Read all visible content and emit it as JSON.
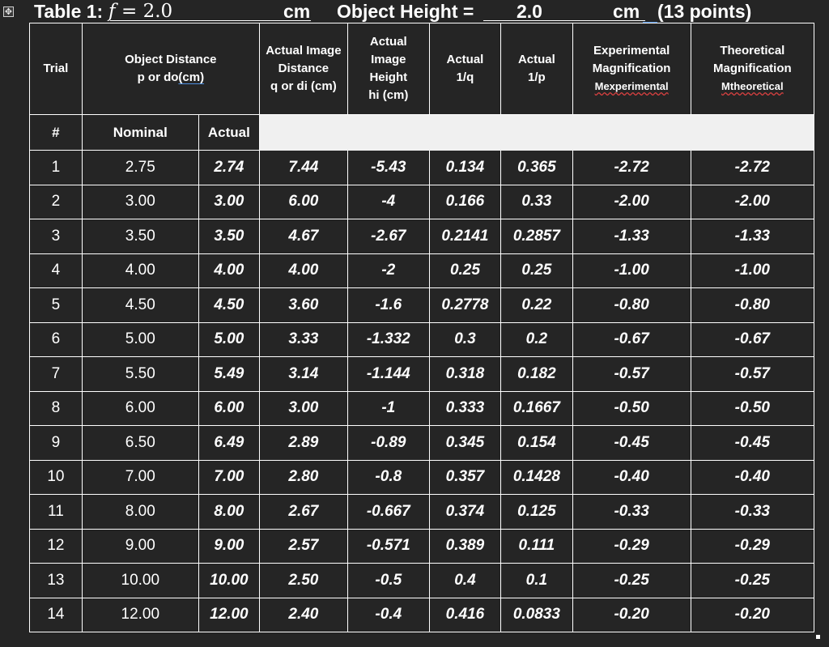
{
  "title": {
    "table_label": "Table 1:",
    "f_symbol": "f",
    "f_eq": "= 2.0",
    "f_unit": "cm",
    "height_label": "Object Height =",
    "height_value": "2.0",
    "height_unit": "cm",
    "points": "(13 points)"
  },
  "header": {
    "trial": "Trial",
    "object_distance_line1": "Object Distance",
    "object_distance_line2": "p  or  do",
    "object_distance_unit": "(cm)",
    "image_distance_line1": "Actual Image",
    "image_distance_line2": "Distance",
    "image_distance_line3": "q or di (cm)",
    "image_height_line1": "Actual",
    "image_height_line2": "Image",
    "image_height_line3": "Height",
    "image_height_line4": "hi (cm)",
    "inv_q_line1": "Actual",
    "inv_q_line2": "1/q",
    "inv_p_line1": "Actual",
    "inv_p_line2": "1/p",
    "exp_mag_line1": "Experimental",
    "exp_mag_line2": "Magnification",
    "exp_mag_line3": "Mexperimental",
    "theo_mag_line1": "Theoretical",
    "theo_mag_line2": "Magnification",
    "theo_mag_line3": "Mtheoretical"
  },
  "subheader": {
    "number": "#",
    "nominal": "Nominal",
    "actual": "Actual"
  },
  "rows": [
    {
      "trial": "1",
      "nominal": "2.75",
      "actual": "2.74",
      "q": "7.44",
      "hi": "-5.43",
      "inv_q": "0.134",
      "inv_p": "0.365",
      "m_exp": "-2.72",
      "m_theo": "-2.72"
    },
    {
      "trial": "2",
      "nominal": "3.00",
      "actual": "3.00",
      "q": "6.00",
      "hi": "-4",
      "inv_q": "0.166",
      "inv_p": "0.33",
      "m_exp": "-2.00",
      "m_theo": "-2.00"
    },
    {
      "trial": "3",
      "nominal": "3.50",
      "actual": "3.50",
      "q": "4.67",
      "hi": "-2.67",
      "inv_q": "0.2141",
      "inv_p": "0.2857",
      "m_exp": "-1.33",
      "m_theo": "-1.33"
    },
    {
      "trial": "4",
      "nominal": "4.00",
      "actual": "4.00",
      "q": "4.00",
      "hi": "-2",
      "inv_q": "0.25",
      "inv_p": "0.25",
      "m_exp": "-1.00",
      "m_theo": "-1.00"
    },
    {
      "trial": "5",
      "nominal": "4.50",
      "actual": "4.50",
      "q": "3.60",
      "hi": "-1.6",
      "inv_q": "0.2778",
      "inv_p": "0.22",
      "m_exp": "-0.80",
      "m_theo": "-0.80"
    },
    {
      "trial": "6",
      "nominal": "5.00",
      "actual": "5.00",
      "q": "3.33",
      "hi": "-1.332",
      "inv_q": "0.3",
      "inv_p": "0.2",
      "m_exp": "-0.67",
      "m_theo": "-0.67"
    },
    {
      "trial": "7",
      "nominal": "5.50",
      "actual": "5.49",
      "q": "3.14",
      "hi": "-1.144",
      "inv_q": "0.318",
      "inv_p": "0.182",
      "m_exp": "-0.57",
      "m_theo": "-0.57"
    },
    {
      "trial": "8",
      "nominal": "6.00",
      "actual": "6.00",
      "q": "3.00",
      "hi": "-1",
      "inv_q": "0.333",
      "inv_p": "0.1667",
      "m_exp": "-0.50",
      "m_theo": "-0.50"
    },
    {
      "trial": "9",
      "nominal": "6.50",
      "actual": "6.49",
      "q": "2.89",
      "hi": "-0.89",
      "inv_q": "0.345",
      "inv_p": "0.154",
      "m_exp": "-0.45",
      "m_theo": "-0.45"
    },
    {
      "trial": "10",
      "nominal": "7.00",
      "actual": "7.00",
      "q": "2.80",
      "hi": "-0.8",
      "inv_q": "0.357",
      "inv_p": "0.1428",
      "m_exp": "-0.40",
      "m_theo": "-0.40"
    },
    {
      "trial": "11",
      "nominal": "8.00",
      "actual": "8.00",
      "q": "2.67",
      "hi": "-0.667",
      "inv_q": "0.374",
      "inv_p": "0.125",
      "m_exp": "-0.33",
      "m_theo": "-0.33"
    },
    {
      "trial": "12",
      "nominal": "9.00",
      "actual": "9.00",
      "q": "2.57",
      "hi": "-0.571",
      "inv_q": "0.389",
      "inv_p": "0.111",
      "m_exp": "-0.29",
      "m_theo": "-0.29"
    },
    {
      "trial": "13",
      "nominal": "10.00",
      "actual": "10.00",
      "q": "2.50",
      "hi": "-0.5",
      "inv_q": "0.4",
      "inv_p": "0.1",
      "m_exp": "-0.25",
      "m_theo": "-0.25"
    },
    {
      "trial": "14",
      "nominal": "12.00",
      "actual": "12.00",
      "q": "2.40",
      "hi": "-0.4",
      "inv_q": "0.416",
      "inv_p": "0.0833",
      "m_exp": "-0.20",
      "m_theo": "-0.20"
    }
  ],
  "icons": {
    "table_move_handle": "move-icon",
    "table_resize_handle": "resize-handle-icon"
  }
}
